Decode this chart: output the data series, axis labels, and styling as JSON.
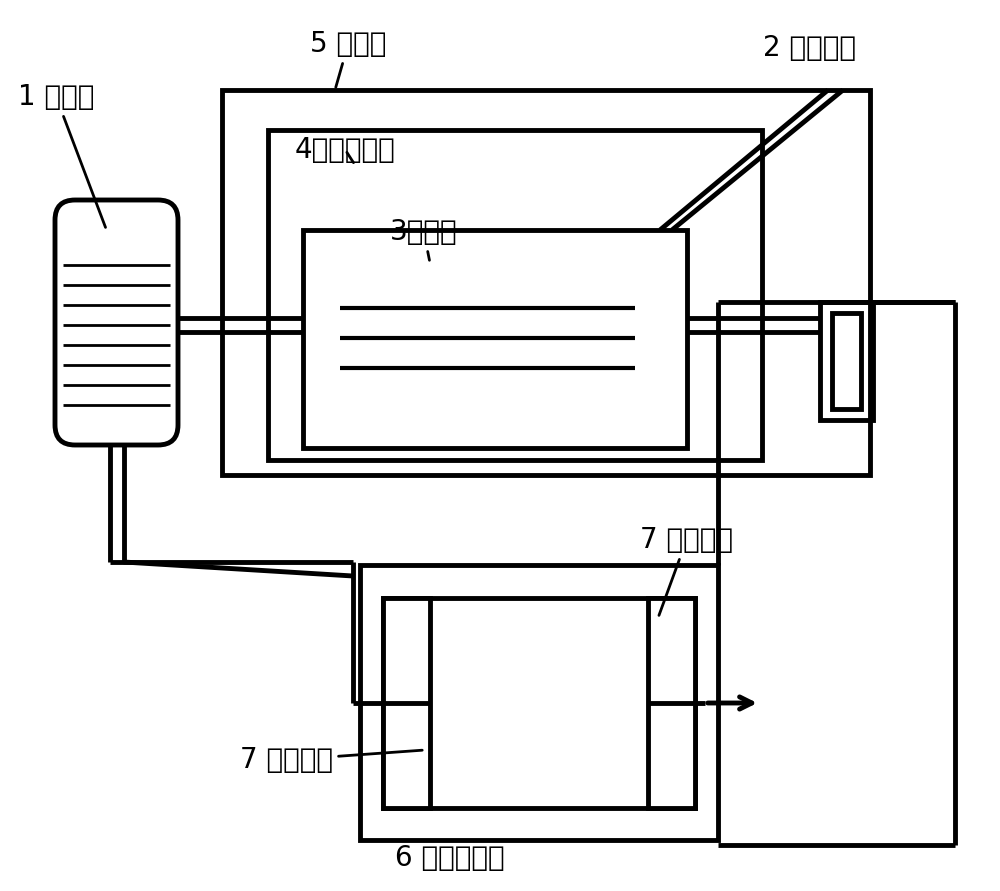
{
  "bg_color": "#ffffff",
  "line_color": "#000000",
  "lw": 3.5,
  "labels": {
    "transformer": "1 变压器",
    "electrode": "2 电导电极",
    "conductivity_cell": "3电导池",
    "em_shield": "4电磁屏蔽笱",
    "thermostat": "5 恒温笱",
    "ir_cell": "6 红外吸收池",
    "sapphire_top": "7 蓝宝石窗",
    "sapphire_bottom": "7 蓝宝石窗"
  },
  "font_size": 20
}
